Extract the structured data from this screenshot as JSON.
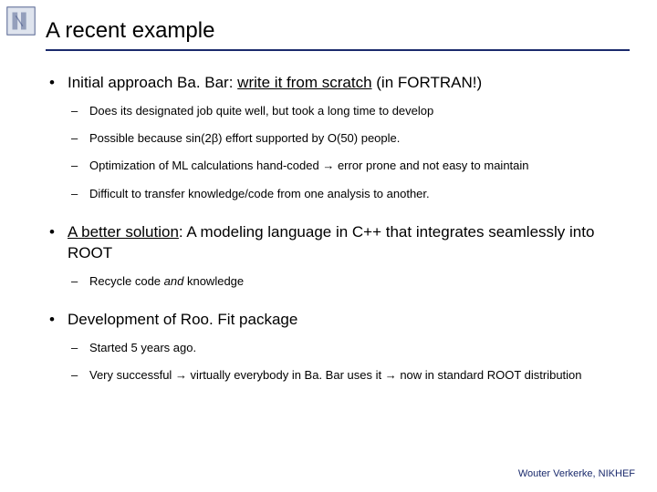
{
  "colors": {
    "underline": "#1a2a6c",
    "footer": "#1a2a6c",
    "text": "#000000",
    "background": "#ffffff",
    "logo_stroke": "#4a5a8a",
    "logo_fill": "#dfe4ee"
  },
  "title": "A recent example",
  "bullets": [
    {
      "text_html": "Initial approach Ba. Bar: <span class='u'>write it from scratch</span> (in FORTRAN!)",
      "subs": [
        "Does its designated job quite well, but took a long time to develop",
        "Possible because sin(2β) effort supported by O(50) people.",
        "Optimization of ML calculations hand-coded <span class='arrow'>→</span> error prone and not easy to maintain",
        "Difficult to transfer knowledge/code  from one analysis to another."
      ]
    },
    {
      "text_html": "<span class='u'>A better solution</span>: A modeling language in C++ that integrates seamlessly into ROOT",
      "subs": [
        "Recycle code <span class='i'>and</span> knowledge"
      ]
    },
    {
      "text_html": "Development of Roo. Fit package",
      "subs": [
        "Started 5 years ago.",
        "Very successful <span class='arrow'>→</span> virtually everybody in Ba. Bar uses it <span class='arrow'>→</span> now in standard ROOT distribution"
      ]
    }
  ],
  "footer": "Wouter Verkerke, NIKHEF"
}
